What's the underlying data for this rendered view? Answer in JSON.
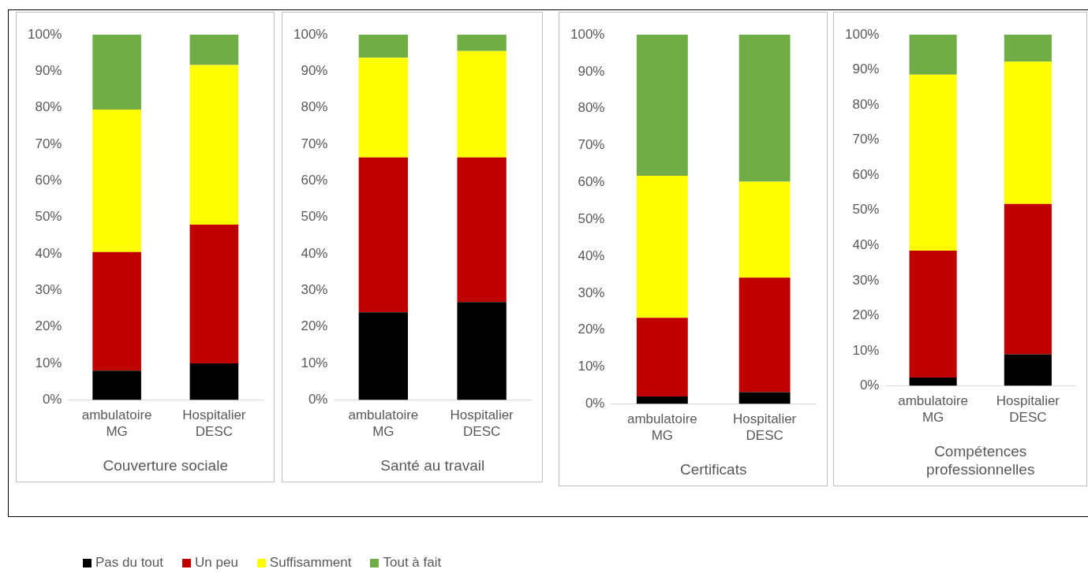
{
  "chart_data": [
    {
      "type": "bar",
      "stacked": true,
      "xlabel": "Couverture sociale",
      "categories": [
        "ambulatoire MG",
        "Hospitalier DESC"
      ],
      "ylim": [
        0,
        100
      ],
      "yticks": [
        {
          "value": 0,
          "label": "0%"
        },
        {
          "value": 10,
          "label": "10%"
        },
        {
          "value": 20,
          "label": "20%"
        },
        {
          "value": 30,
          "label": "30%"
        },
        {
          "value": 40,
          "label": "40%"
        },
        {
          "value": 50,
          "label": "50%"
        },
        {
          "value": 60,
          "label": "60%"
        },
        {
          "value": 70,
          "label": "70%"
        },
        {
          "value": 80,
          "label": "80%"
        },
        {
          "value": 90,
          "label": "90%"
        },
        {
          "value": 100,
          "label": "100%"
        }
      ],
      "grid": false,
      "legend": "bottom",
      "series": [
        {
          "name": "Pas du tout",
          "color": "#000000",
          "values": [
            8,
            10
          ]
        },
        {
          "name": "Un peu",
          "color": "#c00000",
          "values": [
            32.5,
            38
          ]
        },
        {
          "name": "Suffisamment",
          "color": "#ffff00",
          "values": [
            39,
            43.7
          ]
        },
        {
          "name": "Tout à fait",
          "color": "#70ad47",
          "values": [
            20.5,
            8.3
          ]
        }
      ]
    },
    {
      "type": "bar",
      "stacked": true,
      "xlabel": "Santé au travail",
      "categories": [
        "ambulatoire MG",
        "Hospitalier DESC"
      ],
      "ylim": [
        0,
        100
      ],
      "yticks": [
        {
          "value": 0,
          "label": "0%"
        },
        {
          "value": 10,
          "label": "10%"
        },
        {
          "value": 20,
          "label": "20%"
        },
        {
          "value": 30,
          "label": "30%"
        },
        {
          "value": 40,
          "label": "40%"
        },
        {
          "value": 50,
          "label": "50%"
        },
        {
          "value": 60,
          "label": "60%"
        },
        {
          "value": 70,
          "label": "70%"
        },
        {
          "value": 80,
          "label": "80%"
        },
        {
          "value": 90,
          "label": "90%"
        },
        {
          "value": 100,
          "label": "100%"
        }
      ],
      "grid": false,
      "series": [
        {
          "color": "#000000",
          "values": [
            24,
            26.8
          ]
        },
        {
          "color": "#c00000",
          "values": [
            42.4,
            39.6
          ]
        },
        {
          "color": "#ffff00",
          "values": [
            27.3,
            29.1
          ]
        },
        {
          "color": "#70ad47",
          "values": [
            6.3,
            4.5
          ]
        }
      ]
    },
    {
      "type": "bar",
      "stacked": true,
      "xlabel": "Certificats",
      "categories": [
        "ambulatoire MG",
        "Hospitalier DESC"
      ],
      "ylim": [
        0,
        100
      ],
      "yticks": [
        {
          "value": 0,
          "label": "0%"
        },
        {
          "value": 10,
          "label": "10%"
        },
        {
          "value": 20,
          "label": "20%"
        },
        {
          "value": 30,
          "label": "30%"
        },
        {
          "value": 40,
          "label": "40%"
        },
        {
          "value": 50,
          "label": "50%"
        },
        {
          "value": 60,
          "label": "60%"
        },
        {
          "value": 70,
          "label": "70%"
        },
        {
          "value": 80,
          "label": "80%"
        },
        {
          "value": 90,
          "label": "90%"
        },
        {
          "value": 100,
          "label": "100%"
        }
      ],
      "grid": false,
      "series": [
        {
          "color": "#000000",
          "values": [
            2,
            3.2
          ]
        },
        {
          "color": "#c00000",
          "values": [
            21.3,
            31
          ]
        },
        {
          "color": "#ffff00",
          "values": [
            38.5,
            26
          ]
        },
        {
          "color": "#70ad47",
          "values": [
            38.2,
            39.8
          ]
        }
      ]
    },
    {
      "type": "bar",
      "stacked": true,
      "xlabel": "Compétences professionnelles",
      "categories": [
        "ambulatoire MG",
        "Hospitalier DESC"
      ],
      "ylim": [
        0,
        100
      ],
      "yticks": [
        {
          "value": 0,
          "label": "0%"
        },
        {
          "value": 10,
          "label": "10%"
        },
        {
          "value": 20,
          "label": "20%"
        },
        {
          "value": 30,
          "label": "30%"
        },
        {
          "value": 40,
          "label": "40%"
        },
        {
          "value": 50,
          "label": "50%"
        },
        {
          "value": 60,
          "label": "60%"
        },
        {
          "value": 70,
          "label": "70%"
        },
        {
          "value": 80,
          "label": "80%"
        },
        {
          "value": 90,
          "label": "90%"
        },
        {
          "value": 100,
          "label": "100%"
        }
      ],
      "grid": false,
      "series": [
        {
          "color": "#000000",
          "values": [
            2.4,
            9
          ]
        },
        {
          "color": "#c00000",
          "values": [
            36.1,
            42.8
          ]
        },
        {
          "color": "#ffff00",
          "values": [
            50.1,
            40.5
          ]
        },
        {
          "color": "#70ad47",
          "values": [
            11.4,
            7.7
          ]
        }
      ]
    }
  ]
}
